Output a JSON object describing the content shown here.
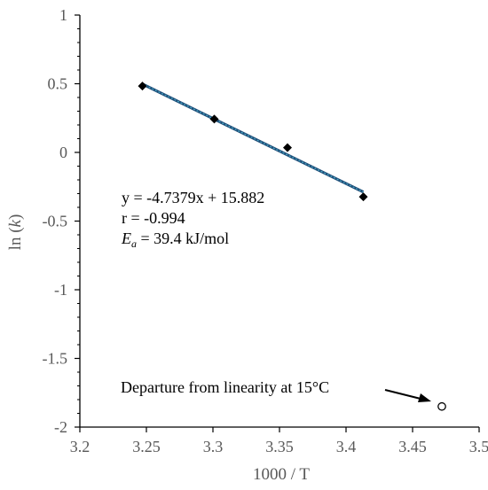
{
  "chart_data": {
    "type": "scatter",
    "xlabel": "1000 / T",
    "ylabel": {
      "prefix": "ln (",
      "italic": "k",
      "suffix": ")"
    },
    "xlim": [
      3.2,
      3.5
    ],
    "ylim": [
      -2,
      1
    ],
    "xticks": [
      3.2,
      3.25,
      3.3,
      3.35,
      3.4,
      3.45,
      3.5
    ],
    "yticks": [
      1,
      0.5,
      0,
      -0.5,
      -1,
      -1.5,
      -2
    ],
    "xtick_labels": [
      "3.2",
      "3.25",
      "3.3",
      "3.35",
      "3.4",
      "3.45",
      "3.5"
    ],
    "ytick_labels": [
      "1",
      "0.5",
      "0",
      "-0.5",
      "-1",
      "-1.5",
      "-2"
    ],
    "grid": false,
    "series": [
      {
        "marker": "diamond",
        "filled": true,
        "color": "#000000",
        "points": [
          {
            "x": 3.247,
            "y": 0.483
          },
          {
            "x": 3.301,
            "y": 0.243
          },
          {
            "x": 3.356,
            "y": 0.035
          },
          {
            "x": 3.413,
            "y": -0.323
          }
        ]
      },
      {
        "marker": "circle",
        "filled": false,
        "color": "#000000",
        "points": [
          {
            "x": 3.472,
            "y": -1.85
          }
        ]
      }
    ],
    "trendline": {
      "slope": -4.7379,
      "intercept": 15.882,
      "x_range": [
        3.247,
        3.413
      ],
      "color": "#1f4e79",
      "dash_color": "#4bacc6"
    },
    "annotations": {
      "equation": "y = -4.7379x + 15.882",
      "r_value": "r = -0.994",
      "ea": {
        "symbol": "E",
        "subscript": "a",
        "value": " = 39.4 kJ/mol"
      },
      "departure": "Departure from linearity at 15°C"
    },
    "colors": {
      "axis": "#000000",
      "tick_label": "#595959",
      "marker": "#000000"
    }
  }
}
